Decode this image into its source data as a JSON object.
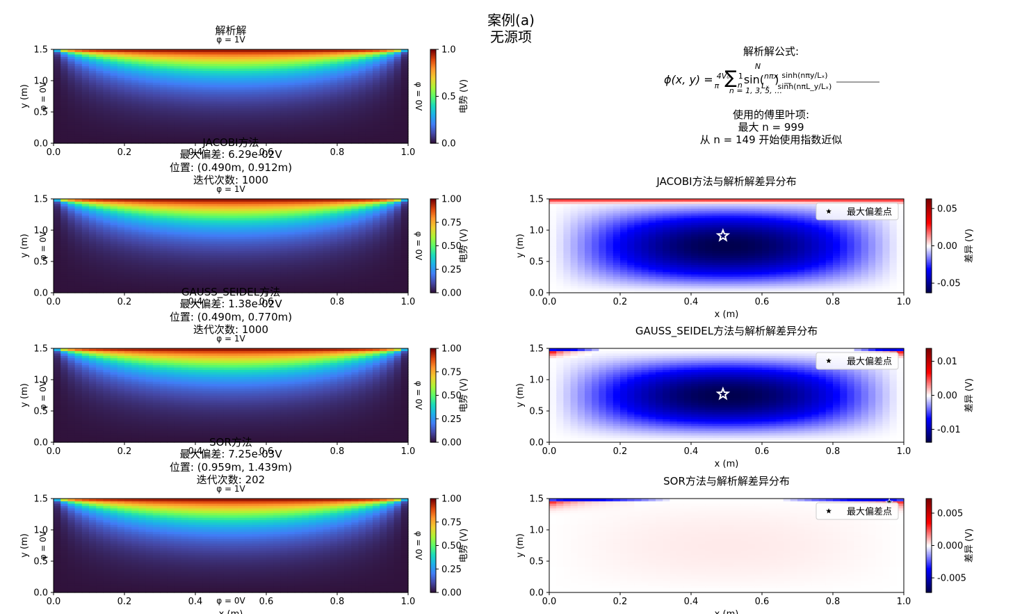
{
  "figure": {
    "title_line1": "案例(a)",
    "title_line2": "无源项"
  },
  "formula": {
    "heading": "解析解公式:",
    "equation": "φ(x, y) = (4V₀/π) Σ (1/n) sin(nπx/Lₓ) · sinh(nπy/Lₓ) / sinh(nπL_y/Lₓ)",
    "sum_index": "n = 1, 3, 5, …",
    "sum_upper": "N",
    "terms_heading": "使用的傅里叶项:",
    "max_n": "最大 n = 999",
    "approx": "从 n = 149 开始使用指数近似"
  },
  "labels": {
    "xlabel": "x (m)",
    "ylabel": "y (m)",
    "cbar_potential": "电势 (V)",
    "cbar_diff": "差异 (V)",
    "bc_top": "φ = 1V",
    "bc_left": "φ = 0V",
    "bc_right": "φ = 0V",
    "bc_bottom": "φ = 0V",
    "legend_max": "最大偏差点"
  },
  "colors": {
    "turbo_low": "#30123b",
    "turbo_high": "#7a0403",
    "diverge_neg": "#000080",
    "diverge_zero": "#ffffff",
    "diverge_pos": "#8b0000"
  },
  "chart_data": [
    {
      "type": "heatmap",
      "title": "解析解",
      "field": "potential",
      "xlim": [
        0,
        1.0
      ],
      "ylim": [
        0,
        1.5
      ],
      "xticks": [
        "0.0",
        "0.2",
        "0.4",
        "0.6",
        "0.8",
        "1.0"
      ],
      "yticks": [
        "0.0",
        "0.5",
        "1.0",
        "1.5"
      ],
      "colorbar_range": [
        0,
        1.0
      ],
      "colorbar_ticks": [
        "0.0",
        "0.5",
        "1.0"
      ],
      "show_xlabel": false
    },
    {
      "type": "heatmap",
      "method": "JACOBI方法",
      "max_dev": "最大偏差: 6.29e-02V",
      "position": "位置: (0.490m, 0.912m)",
      "iterations": "迭代次数: 1000",
      "field": "potential",
      "xlim": [
        0,
        1.0
      ],
      "ylim": [
        0,
        1.5
      ],
      "xticks": [
        "0.0",
        "0.2",
        "0.4",
        "0.6",
        "0.8",
        "1.0"
      ],
      "yticks": [
        "0.0",
        "0.5",
        "1.0",
        "1.5"
      ],
      "colorbar_range": [
        0,
        1.0
      ],
      "colorbar_ticks": [
        "0.00",
        "0.25",
        "0.50",
        "0.75",
        "1.00"
      ],
      "show_xlabel": false
    },
    {
      "type": "heatmap",
      "title": "JACOBI方法与解析解差异分布",
      "field": "diff",
      "variant": "jacobi",
      "xlim": [
        0,
        1.0
      ],
      "ylim": [
        0,
        1.5
      ],
      "xticks": [
        "0.0",
        "0.2",
        "0.4",
        "0.6",
        "0.8",
        "1.0"
      ],
      "yticks": [
        "0.0",
        "0.5",
        "1.0",
        "1.5"
      ],
      "colorbar_range": [
        -0.0629,
        0.0629
      ],
      "colorbar_ticks": [
        "-0.05",
        "0.00",
        "0.05"
      ],
      "colorbar_tick_values": [
        -0.05,
        0.0,
        0.05
      ],
      "max_point": [
        0.49,
        0.912
      ],
      "show_xlabel": true
    },
    {
      "type": "heatmap",
      "method": "GAUSS_SEIDEL方法",
      "max_dev": "最大偏差: 1.38e-02V",
      "position": "位置: (0.490m, 0.770m)",
      "iterations": "迭代次数: 1000",
      "field": "potential",
      "xlim": [
        0,
        1.0
      ],
      "ylim": [
        0,
        1.5
      ],
      "xticks": [
        "0.0",
        "0.2",
        "0.4",
        "0.6",
        "0.8",
        "1.0"
      ],
      "yticks": [
        "0.0",
        "0.5",
        "1.0",
        "1.5"
      ],
      "colorbar_range": [
        0,
        1.0
      ],
      "colorbar_ticks": [
        "0.00",
        "0.25",
        "0.50",
        "0.75",
        "1.00"
      ],
      "show_xlabel": false
    },
    {
      "type": "heatmap",
      "title": "GAUSS_SEIDEL方法与解析解差异分布",
      "field": "diff",
      "variant": "gs",
      "xlim": [
        0,
        1.0
      ],
      "ylim": [
        0,
        1.5
      ],
      "xticks": [
        "0.0",
        "0.2",
        "0.4",
        "0.6",
        "0.8",
        "1.0"
      ],
      "yticks": [
        "0.0",
        "0.5",
        "1.0",
        "1.5"
      ],
      "colorbar_range": [
        -0.0138,
        0.0138
      ],
      "colorbar_ticks": [
        "-0.01",
        "0.00",
        "0.01"
      ],
      "colorbar_tick_values": [
        -0.01,
        0.0,
        0.01
      ],
      "max_point": [
        0.49,
        0.77
      ],
      "show_xlabel": true
    },
    {
      "type": "heatmap",
      "method": "SOR方法",
      "max_dev": "最大偏差: 7.25e-03V",
      "position": "位置: (0.959m, 1.439m)",
      "iterations": "迭代次数: 202",
      "field": "potential",
      "xlim": [
        0,
        1.0
      ],
      "ylim": [
        0,
        1.5
      ],
      "xticks": [
        "0.0",
        "0.2",
        "0.4",
        "0.6",
        "0.8",
        "1.0"
      ],
      "yticks": [
        "0.0",
        "0.5",
        "1.0",
        "1.5"
      ],
      "colorbar_range": [
        0,
        1.0
      ],
      "colorbar_ticks": [
        "0.00",
        "0.25",
        "0.50",
        "0.75",
        "1.00"
      ],
      "show_xlabel": true
    },
    {
      "type": "heatmap",
      "title": "SOR方法与解析解差异分布",
      "field": "diff",
      "variant": "sor",
      "xlim": [
        0,
        1.0
      ],
      "ylim": [
        0,
        1.5
      ],
      "xticks": [
        "0.0",
        "0.2",
        "0.4",
        "0.6",
        "0.8",
        "1.0"
      ],
      "yticks": [
        "0.0",
        "0.5",
        "1.0",
        "1.5"
      ],
      "colorbar_range": [
        -0.00725,
        0.00725
      ],
      "colorbar_ticks": [
        "-0.005",
        "0.000",
        "0.005"
      ],
      "colorbar_tick_values": [
        -0.005,
        0.0,
        0.005
      ],
      "max_point": [
        0.959,
        1.439
      ],
      "show_xlabel": true
    }
  ]
}
